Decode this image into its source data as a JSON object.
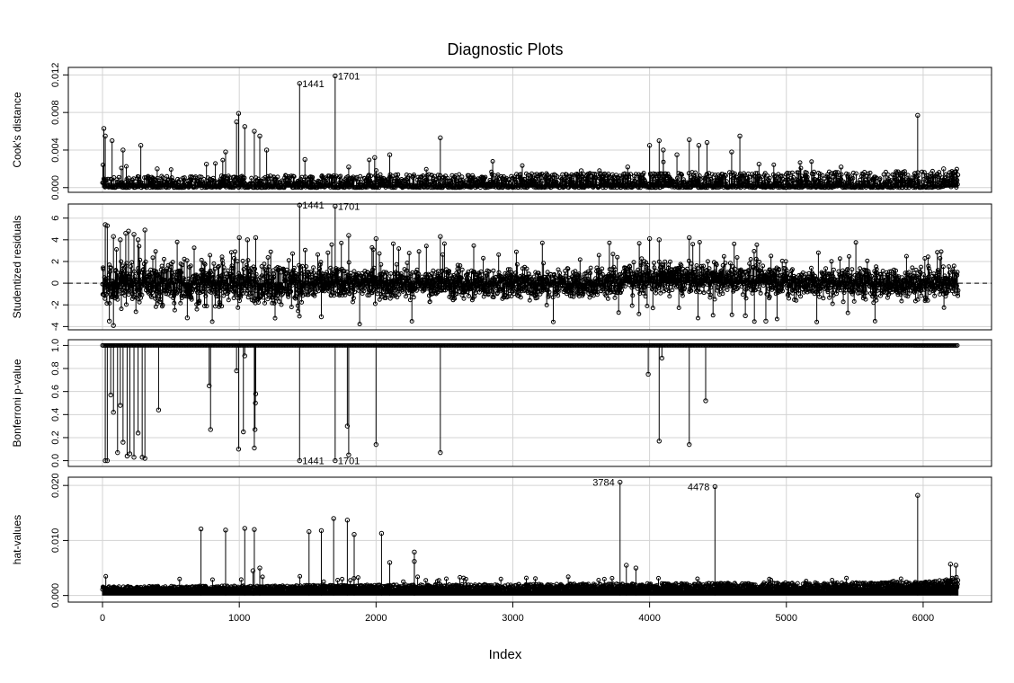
{
  "title": "Diagnostic Plots",
  "xlabel": "Index",
  "x_ticks": [
    0,
    1000,
    2000,
    3000,
    4000,
    5000,
    6000
  ],
  "xlim": [
    -250,
    6500
  ],
  "n_points": 6258,
  "colors": {
    "point": "#000000",
    "grid": "#d3d3d3",
    "frame": "#000000",
    "reference_line": "#000000"
  },
  "chart_data": [
    {
      "type": "scatter",
      "style": "spike",
      "ylabel": "Cook's distance",
      "ylim": [
        -0.0005,
        0.0128
      ],
      "y_ticks": [
        0.0,
        0.004,
        0.008,
        0.012
      ],
      "y_tick_labels": [
        "0.000",
        "0.004",
        "0.008",
        "0.012"
      ],
      "grid": true,
      "baseline": {
        "typical_max": 0.0012,
        "noise_max": 0.003,
        "ramp_end": 0.0016
      },
      "highlights": [
        {
          "x": 10,
          "y": 0.0063
        },
        {
          "x": 20,
          "y": 0.0055
        },
        {
          "x": 70,
          "y": 0.005
        },
        {
          "x": 150,
          "y": 0.004
        },
        {
          "x": 280,
          "y": 0.0045
        },
        {
          "x": 400,
          "y": 0.002
        },
        {
          "x": 760,
          "y": 0.0025
        },
        {
          "x": 900,
          "y": 0.0038
        },
        {
          "x": 980,
          "y": 0.007
        },
        {
          "x": 995,
          "y": 0.0079
        },
        {
          "x": 1040,
          "y": 0.0065
        },
        {
          "x": 1110,
          "y": 0.006
        },
        {
          "x": 1150,
          "y": 0.0055
        },
        {
          "x": 1200,
          "y": 0.004
        },
        {
          "x": 1441,
          "y": 0.0111
        },
        {
          "x": 1480,
          "y": 0.003
        },
        {
          "x": 1701,
          "y": 0.0119
        },
        {
          "x": 1800,
          "y": 0.0022
        },
        {
          "x": 1990,
          "y": 0.0032
        },
        {
          "x": 2100,
          "y": 0.0035
        },
        {
          "x": 2470,
          "y": 0.0053
        },
        {
          "x": 3500,
          "y": 0.0018
        },
        {
          "x": 3840,
          "y": 0.0022
        },
        {
          "x": 4000,
          "y": 0.0045
        },
        {
          "x": 4070,
          "y": 0.005
        },
        {
          "x": 4100,
          "y": 0.004
        },
        {
          "x": 4200,
          "y": 0.0035
        },
        {
          "x": 4290,
          "y": 0.0051
        },
        {
          "x": 4360,
          "y": 0.0045
        },
        {
          "x": 4420,
          "y": 0.0048
        },
        {
          "x": 4600,
          "y": 0.0038
        },
        {
          "x": 4660,
          "y": 0.0055
        },
        {
          "x": 4800,
          "y": 0.0025
        },
        {
          "x": 5400,
          "y": 0.0022
        },
        {
          "x": 5960,
          "y": 0.0077
        },
        {
          "x": 6150,
          "y": 0.002
        }
      ],
      "annotations": [
        {
          "label": "1441",
          "x": 1441,
          "y": 0.0111
        },
        {
          "label": "1701",
          "x": 1701,
          "y": 0.0119
        }
      ]
    },
    {
      "type": "scatter",
      "style": "spike",
      "ylabel": "Studentized residuals",
      "ylim": [
        -4.3,
        7.3
      ],
      "y_ticks": [
        -4,
        -2,
        0,
        2,
        4,
        6
      ],
      "y_tick_labels": [
        "-4",
        "-2",
        "0",
        "2",
        "4",
        "6"
      ],
      "grid": true,
      "reference_line": 0,
      "baseline": {
        "low": -2.8,
        "high": 2.8
      },
      "highlights": [
        {
          "x": 20,
          "y": 5.4
        },
        {
          "x": 35,
          "y": 5.3
        },
        {
          "x": 80,
          "y": 4.3
        },
        {
          "x": 130,
          "y": 4.0
        },
        {
          "x": 170,
          "y": 4.6
        },
        {
          "x": 190,
          "y": 4.8
        },
        {
          "x": 230,
          "y": 4.5
        },
        {
          "x": 260,
          "y": 4.0
        },
        {
          "x": 310,
          "y": 4.9
        },
        {
          "x": 1000,
          "y": 4.2
        },
        {
          "x": 1060,
          "y": 4.0
        },
        {
          "x": 1120,
          "y": 4.2
        },
        {
          "x": 1441,
          "y": 7.2
        },
        {
          "x": 1701,
          "y": 7.1
        },
        {
          "x": 1800,
          "y": 4.4
        },
        {
          "x": 2000,
          "y": 4.1
        },
        {
          "x": 2470,
          "y": 4.3
        },
        {
          "x": 4000,
          "y": 4.1
        },
        {
          "x": 4070,
          "y": 4.0
        },
        {
          "x": 4290,
          "y": 4.2
        },
        {
          "x": 4700,
          "y": -3.0
        },
        {
          "x": 4850,
          "y": -3.5
        },
        {
          "x": 50,
          "y": -3.5
        },
        {
          "x": 80,
          "y": -3.9
        },
        {
          "x": 620,
          "y": -3.2
        },
        {
          "x": 1600,
          "y": -3.1
        }
      ],
      "annotations": [
        {
          "label": "1441",
          "x": 1441,
          "y": 7.2
        },
        {
          "label": "1701",
          "x": 1701,
          "y": 7.1
        }
      ]
    },
    {
      "type": "scatter",
      "style": "spike-down",
      "ylabel": "Bonferroni p-value",
      "ylim": [
        -0.05,
        1.05
      ],
      "y_ticks": [
        0.0,
        0.2,
        0.4,
        0.6,
        0.8,
        1.0
      ],
      "y_tick_labels": [
        "0.0",
        "0.2",
        "0.4",
        "0.6",
        "0.8",
        "1.0"
      ],
      "grid": true,
      "baseline_value": 1.0,
      "highlights": [
        {
          "x": 20,
          "y": 0.0
        },
        {
          "x": 35,
          "y": 0.0
        },
        {
          "x": 60,
          "y": 0.57
        },
        {
          "x": 80,
          "y": 0.42
        },
        {
          "x": 110,
          "y": 0.07
        },
        {
          "x": 130,
          "y": 0.48
        },
        {
          "x": 150,
          "y": 0.16
        },
        {
          "x": 180,
          "y": 0.04
        },
        {
          "x": 200,
          "y": 0.06
        },
        {
          "x": 230,
          "y": 0.03
        },
        {
          "x": 260,
          "y": 0.24
        },
        {
          "x": 290,
          "y": 0.03
        },
        {
          "x": 310,
          "y": 0.02
        },
        {
          "x": 410,
          "y": 0.44
        },
        {
          "x": 780,
          "y": 0.65
        },
        {
          "x": 790,
          "y": 0.27
        },
        {
          "x": 980,
          "y": 0.78
        },
        {
          "x": 995,
          "y": 0.1
        },
        {
          "x": 1030,
          "y": 0.25
        },
        {
          "x": 1040,
          "y": 0.91
        },
        {
          "x": 1110,
          "y": 0.11
        },
        {
          "x": 1115,
          "y": 0.27
        },
        {
          "x": 1118,
          "y": 0.5
        },
        {
          "x": 1120,
          "y": 0.58
        },
        {
          "x": 1441,
          "y": 0.0
        },
        {
          "x": 1701,
          "y": 0.0
        },
        {
          "x": 1790,
          "y": 0.3
        },
        {
          "x": 1800,
          "y": 0.05
        },
        {
          "x": 2000,
          "y": 0.14
        },
        {
          "x": 2470,
          "y": 0.07
        },
        {
          "x": 3990,
          "y": 0.75
        },
        {
          "x": 4070,
          "y": 0.17
        },
        {
          "x": 4090,
          "y": 0.89
        },
        {
          "x": 4290,
          "y": 0.14
        },
        {
          "x": 4410,
          "y": 0.52
        }
      ],
      "annotations": [
        {
          "label": "1441",
          "x": 1441,
          "y": 0.0
        },
        {
          "label": "1701",
          "x": 1701,
          "y": 0.0
        }
      ]
    },
    {
      "type": "scatter",
      "style": "spike",
      "ylabel": "hat-values",
      "ylim": [
        -0.0012,
        0.0215
      ],
      "y_ticks": [
        0.0,
        0.01,
        0.02
      ],
      "y_tick_labels": [
        "0.000",
        "0.010",
        "0.020"
      ],
      "grid": true,
      "baseline": {
        "typical_min": 0.0008,
        "typical_max": 0.0025,
        "noise_max": 0.0035,
        "ramp_end": 0.0038
      },
      "highlights": [
        {
          "x": 720,
          "y": 0.0121
        },
        {
          "x": 900,
          "y": 0.0119
        },
        {
          "x": 1040,
          "y": 0.0122
        },
        {
          "x": 1110,
          "y": 0.012
        },
        {
          "x": 1510,
          "y": 0.0116
        },
        {
          "x": 1600,
          "y": 0.0118
        },
        {
          "x": 1690,
          "y": 0.014
        },
        {
          "x": 1790,
          "y": 0.0137
        },
        {
          "x": 1840,
          "y": 0.0111
        },
        {
          "x": 2040,
          "y": 0.0113
        },
        {
          "x": 2100,
          "y": 0.006
        },
        {
          "x": 2280,
          "y": 0.0079
        },
        {
          "x": 2280,
          "y": 0.0062
        },
        {
          "x": 1100,
          "y": 0.0045
        },
        {
          "x": 1150,
          "y": 0.005
        },
        {
          "x": 3784,
          "y": 0.0206
        },
        {
          "x": 3830,
          "y": 0.0055
        },
        {
          "x": 3900,
          "y": 0.005
        },
        {
          "x": 4478,
          "y": 0.0198
        },
        {
          "x": 5960,
          "y": 0.0182
        },
        {
          "x": 6200,
          "y": 0.0057
        },
        {
          "x": 6240,
          "y": 0.0055
        }
      ],
      "annotations": [
        {
          "label": "3784",
          "x": 3784,
          "y": 0.0206
        },
        {
          "label": "4478",
          "x": 4478,
          "y": 0.0198
        }
      ]
    }
  ]
}
